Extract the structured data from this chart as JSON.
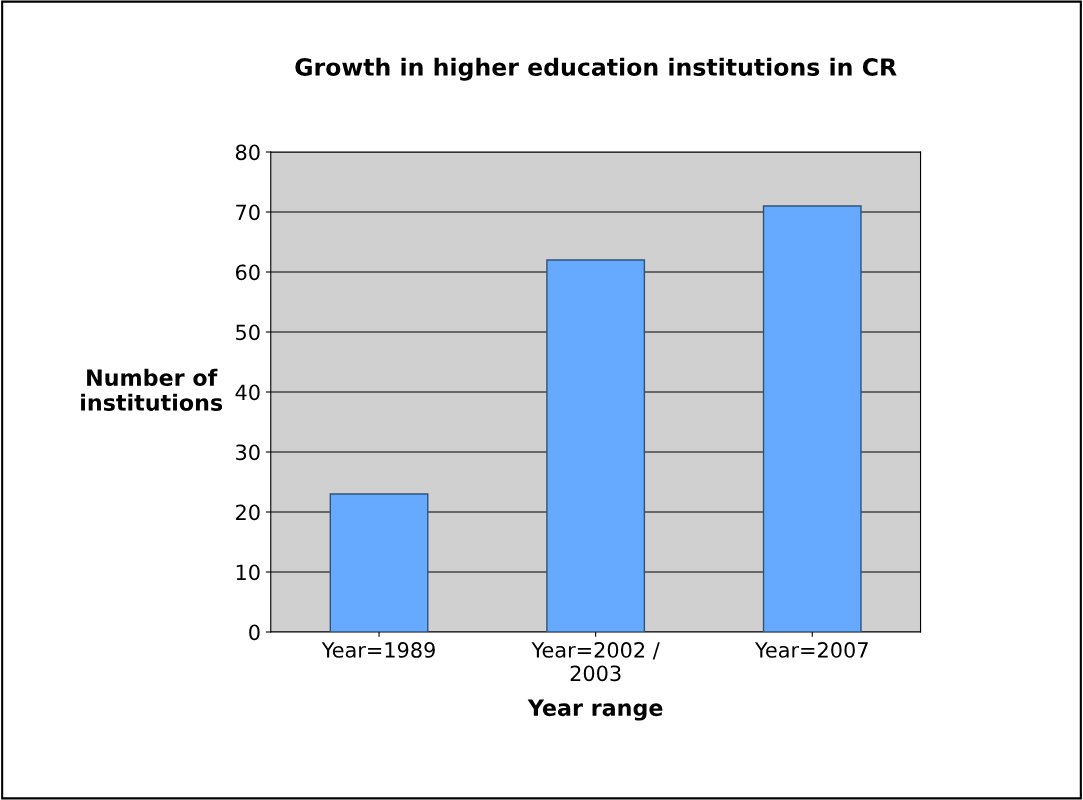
{
  "chart_data": {
    "type": "bar",
    "title": "Growth in higher education institutions in CR",
    "xlabel": "Year range",
    "ylabel": "Number of\ninstitutions",
    "categories": [
      "Year=1989",
      "Year=2002 /\n2003",
      "Year=2007"
    ],
    "values": [
      23,
      62,
      71
    ],
    "color": "#66aaff",
    "ylim": [
      0,
      80
    ],
    "yticks": [
      0,
      10,
      20,
      30,
      40,
      50,
      60,
      70,
      80
    ],
    "grid": "y"
  }
}
